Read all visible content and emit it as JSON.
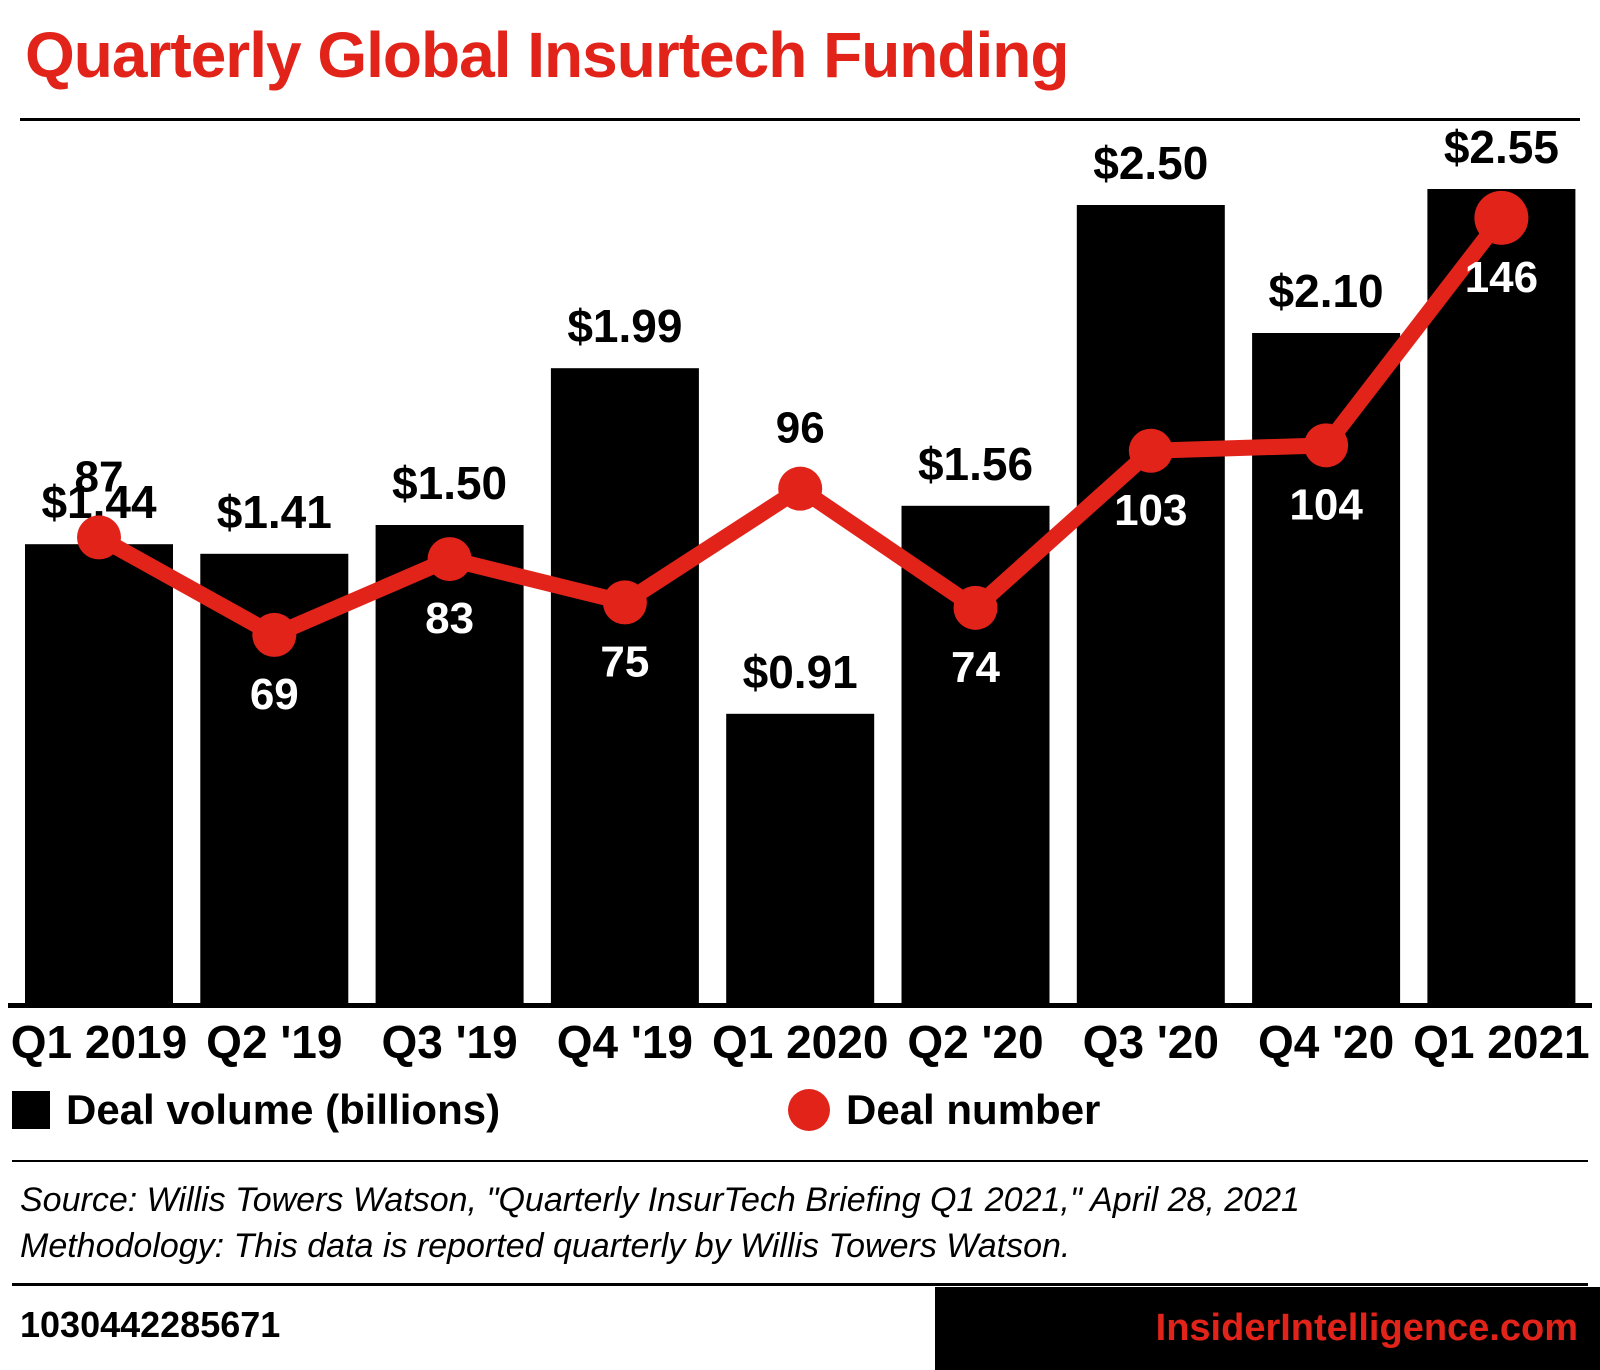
{
  "header": {
    "title": "Quarterly Global Insurtech Funding"
  },
  "chart_data": {
    "type": "bar",
    "subtype": "bar-line-combo",
    "title": "Quarterly Global Insurtech Funding",
    "categories": [
      "Q1 2019",
      "Q2 '19",
      "Q3 '19",
      "Q4 '19",
      "Q1 2020",
      "Q2 '20",
      "Q3 '20",
      "Q4 '20",
      "Q1 2021"
    ],
    "series": [
      {
        "name": "Deal volume (billions)",
        "type": "bar",
        "color": "#000000",
        "values": [
          1.44,
          1.41,
          1.5,
          1.99,
          0.91,
          1.56,
          2.5,
          2.1,
          2.55
        ],
        "labels": [
          "$1.44",
          "$1.41",
          "$1.50",
          "$1.99",
          "$0.91",
          "$1.56",
          "$2.50",
          "$2.10",
          "$2.55"
        ]
      },
      {
        "name": "Deal number",
        "type": "line",
        "color": "#e2231a",
        "values": [
          87,
          69,
          83,
          75,
          96,
          74,
          103,
          104,
          146
        ],
        "labels": [
          "87",
          "69",
          "83",
          "75",
          "96",
          "74",
          "103",
          "104",
          "146"
        ],
        "label_positions": [
          "above",
          "below",
          "below",
          "below",
          "above",
          "below",
          "below",
          "below",
          "below"
        ]
      }
    ],
    "ylim_bars": [
      0,
      2.6
    ],
    "ylim_line": [
      0,
      186
    ],
    "grid": false,
    "legend_position": "bottom"
  },
  "source": {
    "line1": "Source: Willis Towers Watson, \"Quarterly InsurTech Briefing Q1 2021,\" April 28, 2021",
    "line2": "Methodology: This data is reported quarterly by Willis Towers Watson."
  },
  "footer": {
    "code": "1030442285671",
    "brand": "InsiderIntelligence.com"
  },
  "colors": {
    "accent": "#e2231a",
    "bar": "#000000",
    "text": "#000000",
    "background": "#ffffff"
  }
}
